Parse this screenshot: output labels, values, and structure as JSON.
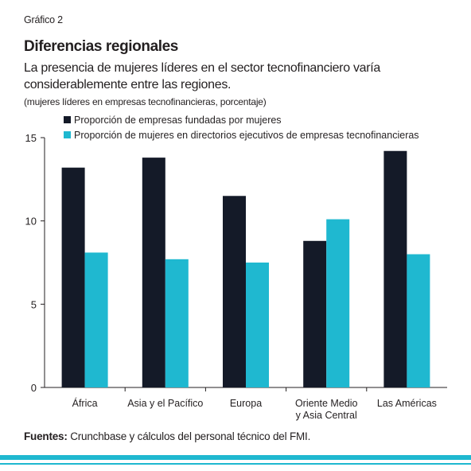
{
  "figure_label": "Gráfico 2",
  "title": "Diferencias regionales",
  "subtitle": "La presencia de mujeres líderes en el sector tecnofinanciero varía considerablemente entre las regiones.",
  "units_note": "(mujeres líderes en empresas tecnofinancieras, porcentaje)",
  "source": {
    "label": "Fuentes:",
    "text": " Crunchbase y cálculos del personal técnico del FMI."
  },
  "colors": {
    "series_1": "#141a28",
    "series_2": "#1fb8d0",
    "accent_rule": "#1fb8d0"
  },
  "chart_data": {
    "type": "bar",
    "categories": [
      [
        "África"
      ],
      [
        "Asia y el Pacífico"
      ],
      [
        "Europa"
      ],
      [
        "Oriente Medio",
        "y Asia Central"
      ],
      [
        "Las Américas"
      ]
    ],
    "series": [
      {
        "name": "Proporción de empresas fundadas por mujeres",
        "values": [
          13.2,
          13.8,
          11.5,
          8.8,
          14.2
        ]
      },
      {
        "name": "Proporción de mujeres en directorios ejecutivos de empresas tecnofinancieras",
        "values": [
          8.1,
          7.7,
          7.5,
          10.1,
          8.0
        ]
      }
    ],
    "ylim": [
      0,
      15
    ],
    "yticks": [
      0,
      5,
      10,
      15
    ],
    "grid": false,
    "legend": "top-left"
  }
}
